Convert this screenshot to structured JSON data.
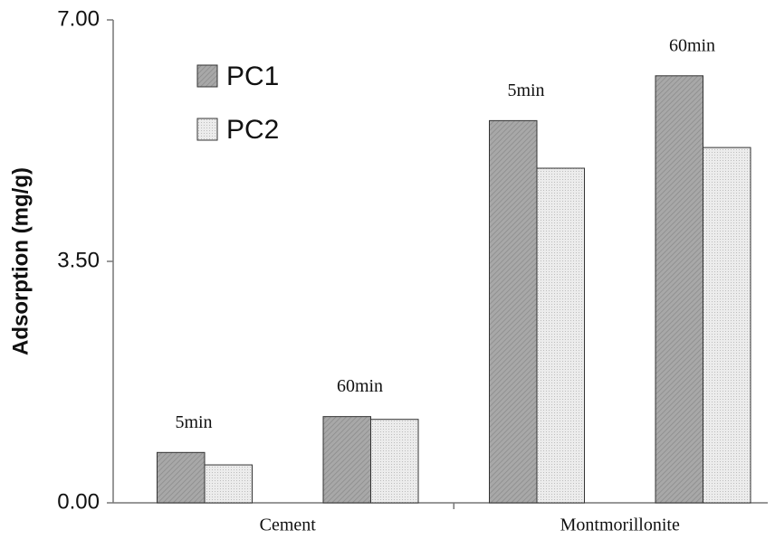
{
  "chart_data": {
    "type": "bar",
    "y_label": "Adsorption (mg/g)",
    "categories": [
      "5min",
      "60min",
      "5min",
      "60min"
    ],
    "groups": [
      "Cement",
      "Montmorillonite"
    ],
    "series": [
      {
        "name": "PC1",
        "color": "#a8a8a8",
        "values": [
          0.73,
          1.25,
          5.54,
          6.19
        ]
      },
      {
        "name": "PC2",
        "color": "#ececec",
        "values": [
          0.55,
          1.21,
          4.85,
          5.15
        ]
      }
    ],
    "ylim": [
      0,
      7
    ],
    "yticks": [
      {
        "value": 0,
        "label": "0.00"
      },
      {
        "value": 3.5,
        "label": "3.50"
      },
      {
        "value": 7,
        "label": "7.00"
      }
    ]
  }
}
